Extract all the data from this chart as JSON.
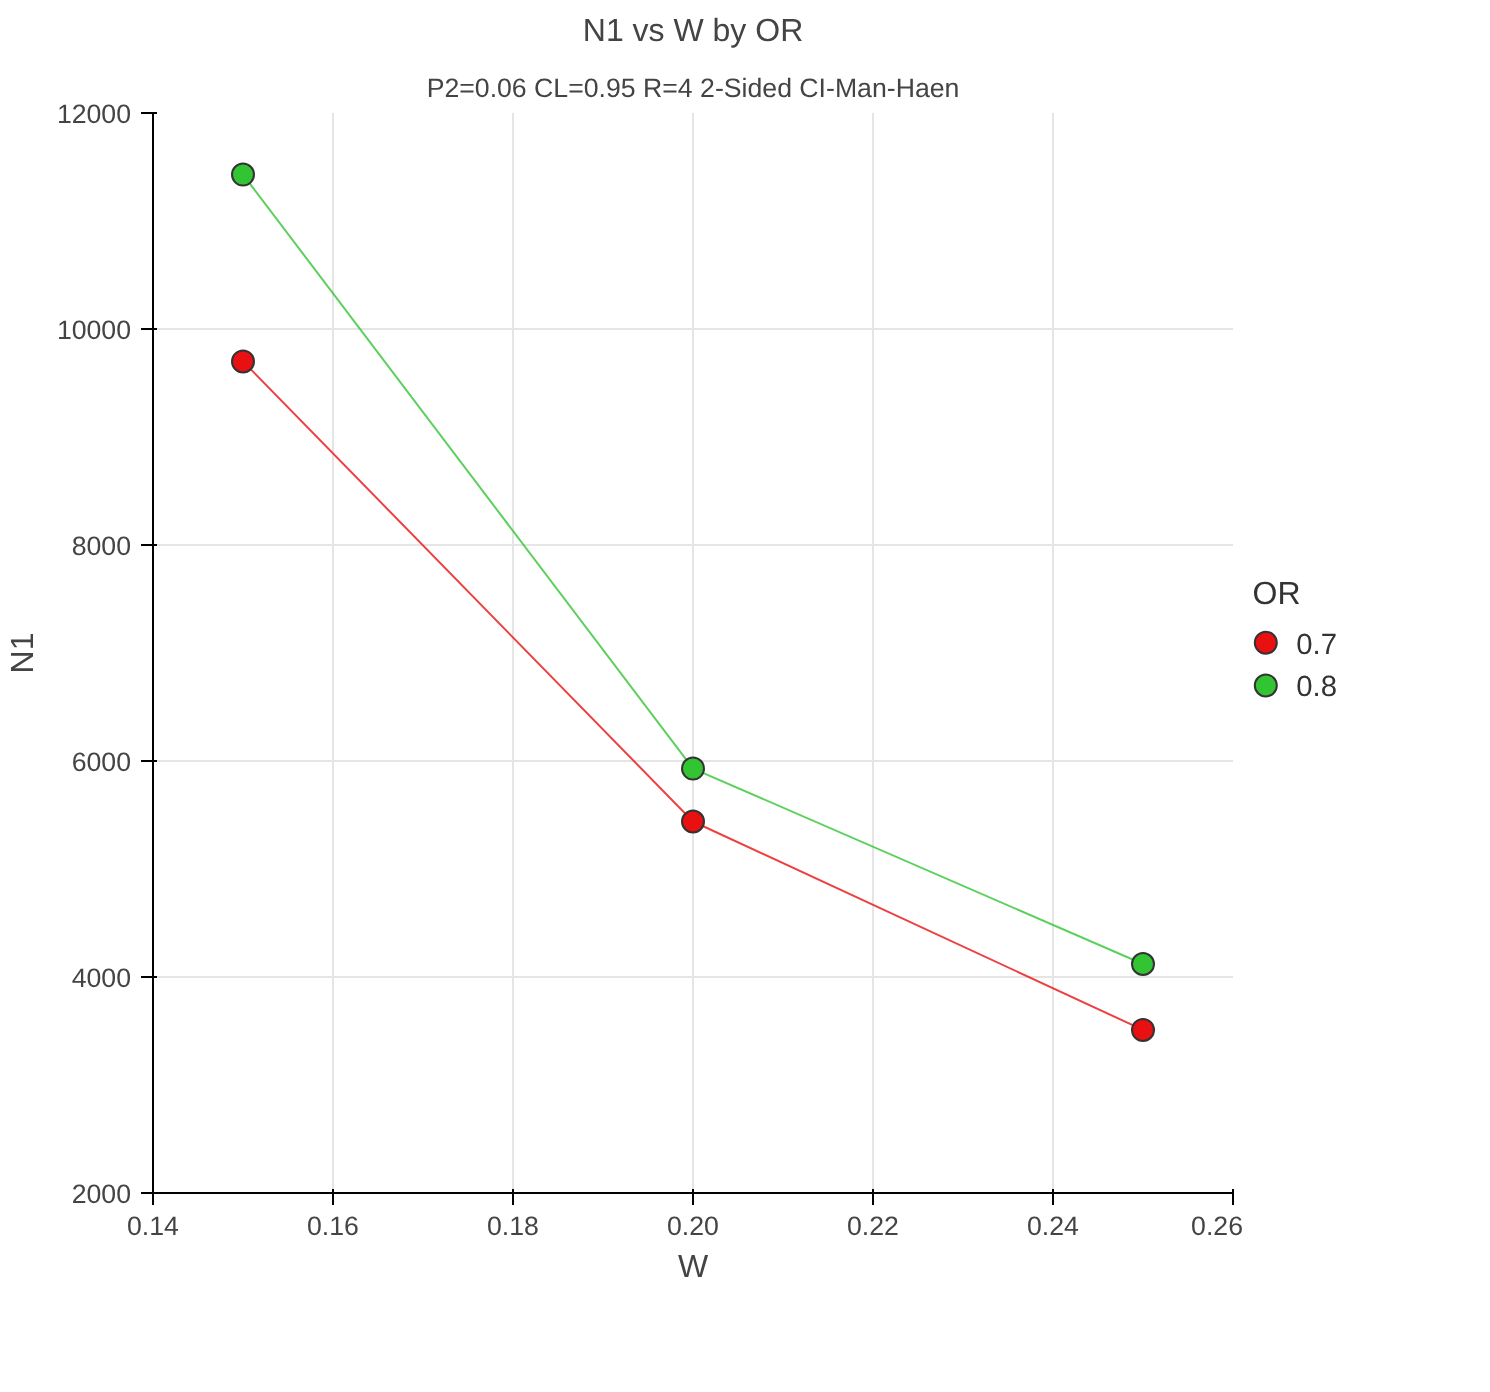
{
  "chart_data": {
    "type": "line",
    "title": "N1 vs W by OR",
    "subtitle": "P2=0.06 CL=0.95 R=4 2-Sided CI-Man-Haen",
    "xlabel": "W",
    "ylabel": "N1",
    "legend_title": "OR",
    "x": [
      0.15,
      0.2,
      0.25
    ],
    "series": [
      {
        "name": "0.7",
        "color": "#e81010",
        "values": [
          9700,
          5440,
          3510
        ]
      },
      {
        "name": "0.8",
        "color": "#33c433",
        "values": [
          11430,
          5930,
          4120
        ]
      }
    ],
    "xlim": [
      0.14,
      0.26
    ],
    "xticks": [
      {
        "value": 0.14,
        "label": "0.14"
      },
      {
        "value": 0.16,
        "label": "0.16"
      },
      {
        "value": 0.18,
        "label": "0.18"
      },
      {
        "value": 0.2,
        "label": "0.20"
      },
      {
        "value": 0.22,
        "label": "0.22"
      },
      {
        "value": 0.24,
        "label": "0.24"
      },
      {
        "value": 0.26,
        "label": "0.26"
      }
    ],
    "ylim": [
      2000,
      12000
    ],
    "yticks": [
      2000,
      4000,
      6000,
      8000,
      10000,
      12000
    ],
    "grid": true,
    "legend": "right",
    "marker": "circle",
    "line_style": "solid"
  }
}
